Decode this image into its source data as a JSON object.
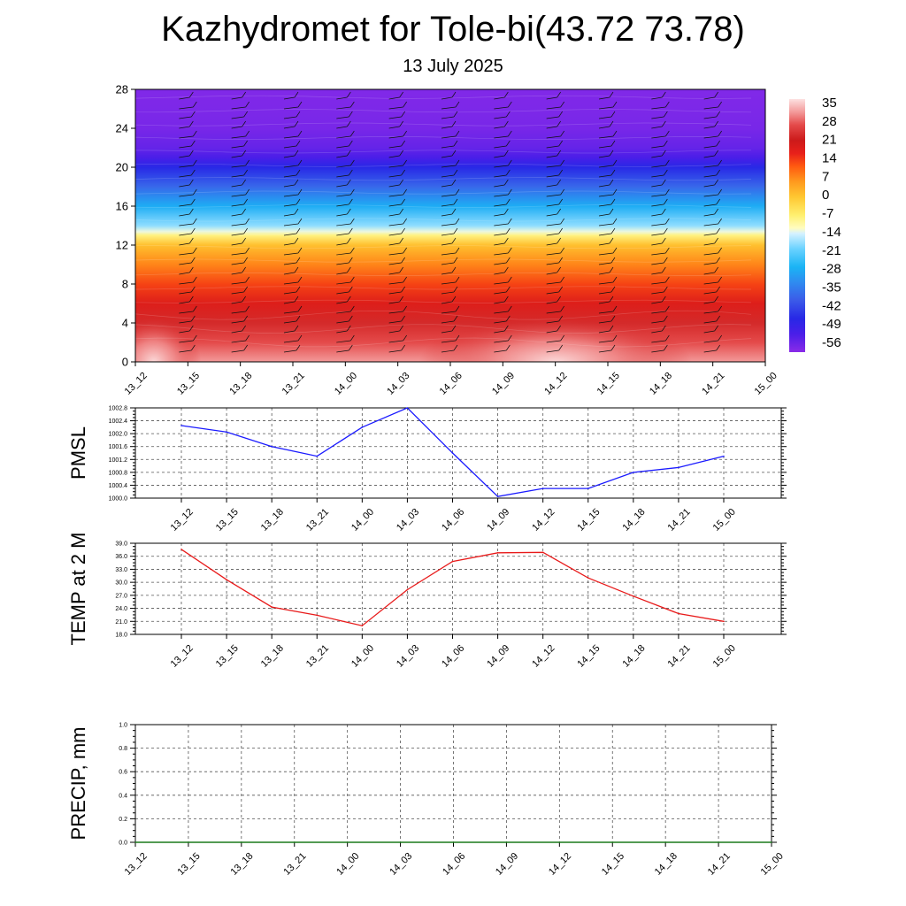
{
  "title": "Kazhydromet for Tole-bi(43.72 73.78)",
  "subtitle": "13 July 2025",
  "chart_data": [
    {
      "type": "heatmap",
      "panel": "cross-section",
      "y_ticks": [
        "0",
        "4",
        "8",
        "12",
        "16",
        "20",
        "24",
        "28"
      ],
      "ylim": [
        0,
        28
      ],
      "x_ticks": [
        "13_12",
        "13_15",
        "13_18",
        "13_21",
        "14_00",
        "14_03",
        "14_06",
        "14_09",
        "14_12",
        "14_15",
        "14_18",
        "14_21",
        "15_00"
      ],
      "colorbar_labels": [
        "35",
        "28",
        "21",
        "14",
        "7",
        "0",
        "-7",
        "-14",
        "-21",
        "-28",
        "-35",
        "-42",
        "-49",
        "-56"
      ],
      "colorbar_range": [
        -60,
        38
      ],
      "colorbar_colors": [
        {
          "v": 38,
          "c": "#fde0e0"
        },
        {
          "v": 33,
          "c": "#f39a9a"
        },
        {
          "v": 28,
          "c": "#e44a4a"
        },
        {
          "v": 22,
          "c": "#cc1a1a"
        },
        {
          "v": 17,
          "c": "#e8201a"
        },
        {
          "v": 12,
          "c": "#ff5a10"
        },
        {
          "v": 6,
          "c": "#ff9a1e"
        },
        {
          "v": 0,
          "c": "#ffc832"
        },
        {
          "v": -7,
          "c": "#fff070"
        },
        {
          "v": -12,
          "c": "#fffcc0"
        },
        {
          "v": -14,
          "c": "#d6f2ff"
        },
        {
          "v": -20,
          "c": "#6ad2ff"
        },
        {
          "v": -27,
          "c": "#1ab4f5"
        },
        {
          "v": -33,
          "c": "#2f8bf0"
        },
        {
          "v": -40,
          "c": "#3b5ae8"
        },
        {
          "v": -47,
          "c": "#2828e6"
        },
        {
          "v": -53,
          "c": "#4a1ee8"
        },
        {
          "v": -60,
          "c": "#8a2be8"
        }
      ],
      "grid": true
    },
    {
      "type": "line",
      "panel": "pmsl",
      "ylabel": "PMSL",
      "x": [
        "13_12",
        "13_15",
        "13_18",
        "13_21",
        "14_00",
        "14_03",
        "14_06",
        "14_09",
        "14_12",
        "14_15",
        "14_18",
        "14_21",
        "15_00"
      ],
      "y_ticks": [
        "1000.0",
        "1000.4",
        "1000.8",
        "1001.2",
        "1001.6",
        "1002.0",
        "1002.4",
        "1002.8"
      ],
      "ylim": [
        1000.0,
        1002.8
      ],
      "series": [
        {
          "values": [
            1002.25,
            1002.05,
            1001.6,
            1001.3,
            1002.2,
            1002.8,
            1001.4,
            1000.05,
            1000.3,
            1000.3,
            1000.8,
            1000.95,
            1001.3
          ],
          "color": "#1a1aff"
        }
      ],
      "grid": true
    },
    {
      "type": "line",
      "panel": "temp",
      "ylabel": "TEMP at 2 M",
      "x": [
        "13_12",
        "13_15",
        "13_18",
        "13_21",
        "14_00",
        "14_03",
        "14_06",
        "14_09",
        "14_12",
        "14_15",
        "14_18",
        "14_21",
        "15_00"
      ],
      "y_ticks": [
        "18.0",
        "21.0",
        "24.0",
        "27.0",
        "30.0",
        "33.0",
        "36.0",
        "39.0"
      ],
      "ylim": [
        18.0,
        39.0
      ],
      "series": [
        {
          "values": [
            37.6,
            30.6,
            24.3,
            22.4,
            20.0,
            28.3,
            34.8,
            36.8,
            36.9,
            31.0,
            26.8,
            22.8,
            21.0
          ],
          "color": "#e81a1a"
        }
      ],
      "grid": true
    },
    {
      "type": "line",
      "panel": "precip",
      "ylabel": "PRECIP, mm",
      "x": [
        "13_12",
        "13_15",
        "13_18",
        "13_21",
        "14_00",
        "14_03",
        "14_06",
        "14_09",
        "14_12",
        "14_15",
        "14_18",
        "14_21",
        "15_00"
      ],
      "y_ticks": [
        "0.0",
        "0.2",
        "0.4",
        "0.6",
        "0.8",
        "1.0"
      ],
      "ylim": [
        0.0,
        1.0
      ],
      "series": [
        {
          "values": [
            0,
            0,
            0,
            0,
            0,
            0,
            0,
            0,
            0,
            0,
            0,
            0,
            0
          ],
          "color": "#1a7a1a"
        }
      ],
      "grid": true
    }
  ]
}
